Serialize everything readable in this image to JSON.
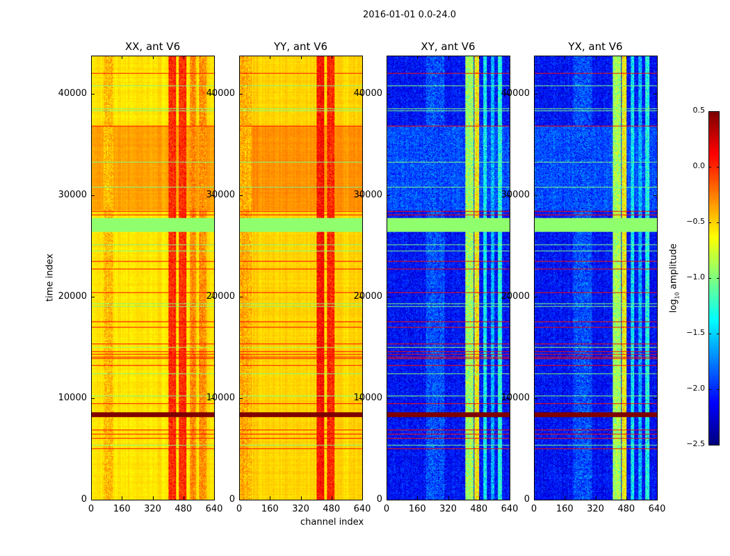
{
  "suptitle": "2016-01-01 0.0-24.0",
  "xlabel": "channel index",
  "ylabel": "time index",
  "colorbar": {
    "label_prefix": "log",
    "label_sub": "10",
    "label_suffix": " amplitude",
    "ticks": [
      "0.5",
      "0.0",
      "−0.5",
      "−1.0",
      "−1.5",
      "−2.0",
      "−2.5"
    ],
    "tick_values": [
      0.5,
      0.0,
      -0.5,
      -1.0,
      -1.5,
      -2.0,
      -2.5
    ],
    "range": [
      -2.5,
      0.5
    ],
    "colormap": "jet"
  },
  "chart_data": {
    "type": "heatmap",
    "xlim": [
      0,
      640
    ],
    "ylim": [
      0,
      43800
    ],
    "xticks": [
      "0",
      "160",
      "320",
      "480",
      "640"
    ],
    "xtick_values": [
      0,
      160,
      320,
      480,
      640
    ],
    "yticks": [
      "0",
      "10000",
      "20000",
      "30000",
      "40000"
    ],
    "ytick_values": [
      0,
      10000,
      20000,
      30000,
      40000
    ],
    "value_range": [
      -2.5,
      0.5
    ],
    "flagged_rows": [
      {
        "t": 42150,
        "v": 0.1
      },
      {
        "t": 40920,
        "v": -1.0
      },
      {
        "t": 38660,
        "v": -1.0
      },
      {
        "t": 38450,
        "v": -1.0
      },
      {
        "t": 36940,
        "v": 0.1
      },
      {
        "t": 33380,
        "v": -1.0
      },
      {
        "t": 30910,
        "v": -1.0
      },
      {
        "t": 28510,
        "v": 0.1
      },
      {
        "t": 28170,
        "v": 0.1
      },
      {
        "t": 25200,
        "v": -1.0
      },
      {
        "t": 24600,
        "v": -1.0
      },
      {
        "t": 23580,
        "v": 0.1
      },
      {
        "t": 22820,
        "v": 0.1
      },
      {
        "t": 20490,
        "v": 0.1
      },
      {
        "t": 19400,
        "v": -1.0
      },
      {
        "t": 19120,
        "v": -1.0
      },
      {
        "t": 17610,
        "v": 0.1
      },
      {
        "t": 17070,
        "v": 0.1
      },
      {
        "t": 15420,
        "v": 0.1
      },
      {
        "t": 15100,
        "v": -0.9
      },
      {
        "t": 14670,
        "v": 0.1
      },
      {
        "t": 14400,
        "v": 0.1
      },
      {
        "t": 14150,
        "v": 0.1
      },
      {
        "t": 13980,
        "v": 0.1
      },
      {
        "t": 13300,
        "v": 0.1
      },
      {
        "t": 12500,
        "v": -1.0
      },
      {
        "t": 10300,
        "v": -1.0
      },
      {
        "t": 9530,
        "v": 0.1
      },
      {
        "t": 6920,
        "v": 0.1
      },
      {
        "t": 6500,
        "v": 0.1
      },
      {
        "t": 6100,
        "v": 0.1
      },
      {
        "t": 5400,
        "v": -1.0
      },
      {
        "t": 5070,
        "v": 0.1
      }
    ],
    "flagged_blocks": [
      {
        "t0": 26460,
        "t1": 27830,
        "v": -0.95
      },
      {
        "t0": 8160,
        "t1": 8700,
        "v": 0.5
      }
    ],
    "panels": [
      {
        "title": "XX, ant V6",
        "base": -0.55,
        "segments": [
          {
            "t0": 28600,
            "t1": 36900,
            "v": -0.35
          }
        ],
        "channel_bands": [
          {
            "c0": 400,
            "c1": 440,
            "v": 0.0
          },
          {
            "c0": 455,
            "c1": 495,
            "v": 0.0
          },
          {
            "c0": 510,
            "c1": 545,
            "v": -0.3
          },
          {
            "c0": 560,
            "c1": 600,
            "v": -0.3
          },
          {
            "c0": 60,
            "c1": 110,
            "v": -0.45
          }
        ]
      },
      {
        "title": "YY, ant V6",
        "base": -0.5,
        "segments": [
          {
            "t0": 28600,
            "t1": 36900,
            "v": -0.3
          }
        ],
        "channel_bands": [
          {
            "c0": 400,
            "c1": 440,
            "v": 0.1
          },
          {
            "c0": 455,
            "c1": 495,
            "v": 0.0
          },
          {
            "c0": 0,
            "c1": 60,
            "v": -0.4
          }
        ]
      },
      {
        "title": "XY, ant V6",
        "base": -2.1,
        "segments": [
          {
            "t0": 28600,
            "t1": 36900,
            "v": -1.9
          }
        ],
        "channel_bands": [
          {
            "c0": 405,
            "c1": 450,
            "v": -0.9
          },
          {
            "c0": 455,
            "c1": 480,
            "v": -0.6
          },
          {
            "c0": 500,
            "c1": 520,
            "v": -1.4
          },
          {
            "c0": 540,
            "c1": 560,
            "v": -1.6
          },
          {
            "c0": 575,
            "c1": 600,
            "v": -1.3
          },
          {
            "c0": 200,
            "c1": 300,
            "v": -1.9
          }
        ]
      },
      {
        "title": "YX, ant V6",
        "base": -2.1,
        "segments": [
          {
            "t0": 28600,
            "t1": 36900,
            "v": -1.9
          }
        ],
        "channel_bands": [
          {
            "c0": 405,
            "c1": 450,
            "v": -0.9
          },
          {
            "c0": 455,
            "c1": 480,
            "v": -0.6
          },
          {
            "c0": 500,
            "c1": 520,
            "v": -1.4
          },
          {
            "c0": 540,
            "c1": 560,
            "v": -1.6
          },
          {
            "c0": 575,
            "c1": 600,
            "v": -1.3
          },
          {
            "c0": 200,
            "c1": 300,
            "v": -1.9
          }
        ]
      }
    ]
  }
}
